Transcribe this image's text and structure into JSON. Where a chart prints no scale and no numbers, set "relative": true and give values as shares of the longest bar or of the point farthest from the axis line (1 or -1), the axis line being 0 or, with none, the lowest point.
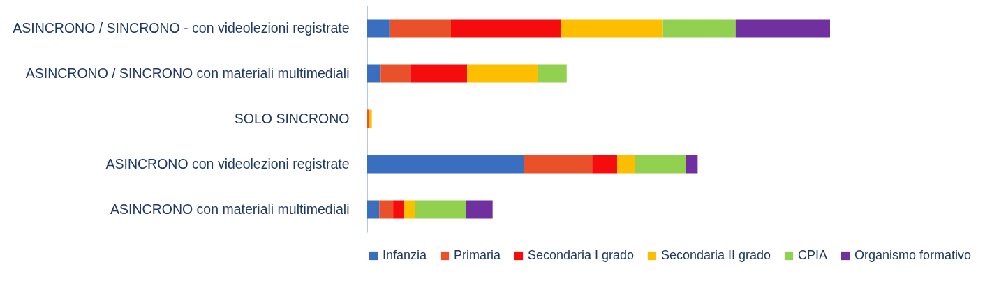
{
  "chart_data": {
    "type": "bar",
    "orientation": "horizontal",
    "stacked": true,
    "relative": true,
    "legend": "bottom",
    "categories": [
      "ASINCRONO / SINCRONO -  con videolezioni registrate",
      "ASINCRONO / SINCRONO con materiali multimediali",
      "SOLO SINCRONO",
      "ASINCRONO con videolezioni registrate",
      "ASINCRONO con materiali multimediali"
    ],
    "series": [
      {
        "name": "Infanzia",
        "color": "#3a6fbf",
        "values": [
          0.048,
          0.029,
          0,
          0.338,
          0.026
        ]
      },
      {
        "name": "Primaria",
        "color": "#e8512a",
        "values": [
          0.133,
          0.065,
          0.002,
          0.148,
          0.03
        ]
      },
      {
        "name": "Secondaria I grado",
        "color": "#f50c0c",
        "values": [
          0.238,
          0.122,
          0.002,
          0.054,
          0.024
        ]
      },
      {
        "name": "Secondaria II grado",
        "color": "#fdbe00",
        "values": [
          0.22,
          0.152,
          0.006,
          0.038,
          0.024
        ]
      },
      {
        "name": "CPIA",
        "color": "#92d050",
        "values": [
          0.157,
          0.063,
          0,
          0.11,
          0.11
        ]
      },
      {
        "name": "Organismo formativo",
        "color": "#7030a0",
        "values": [
          0.204,
          0,
          0,
          0.026,
          0.057
        ]
      }
    ]
  }
}
